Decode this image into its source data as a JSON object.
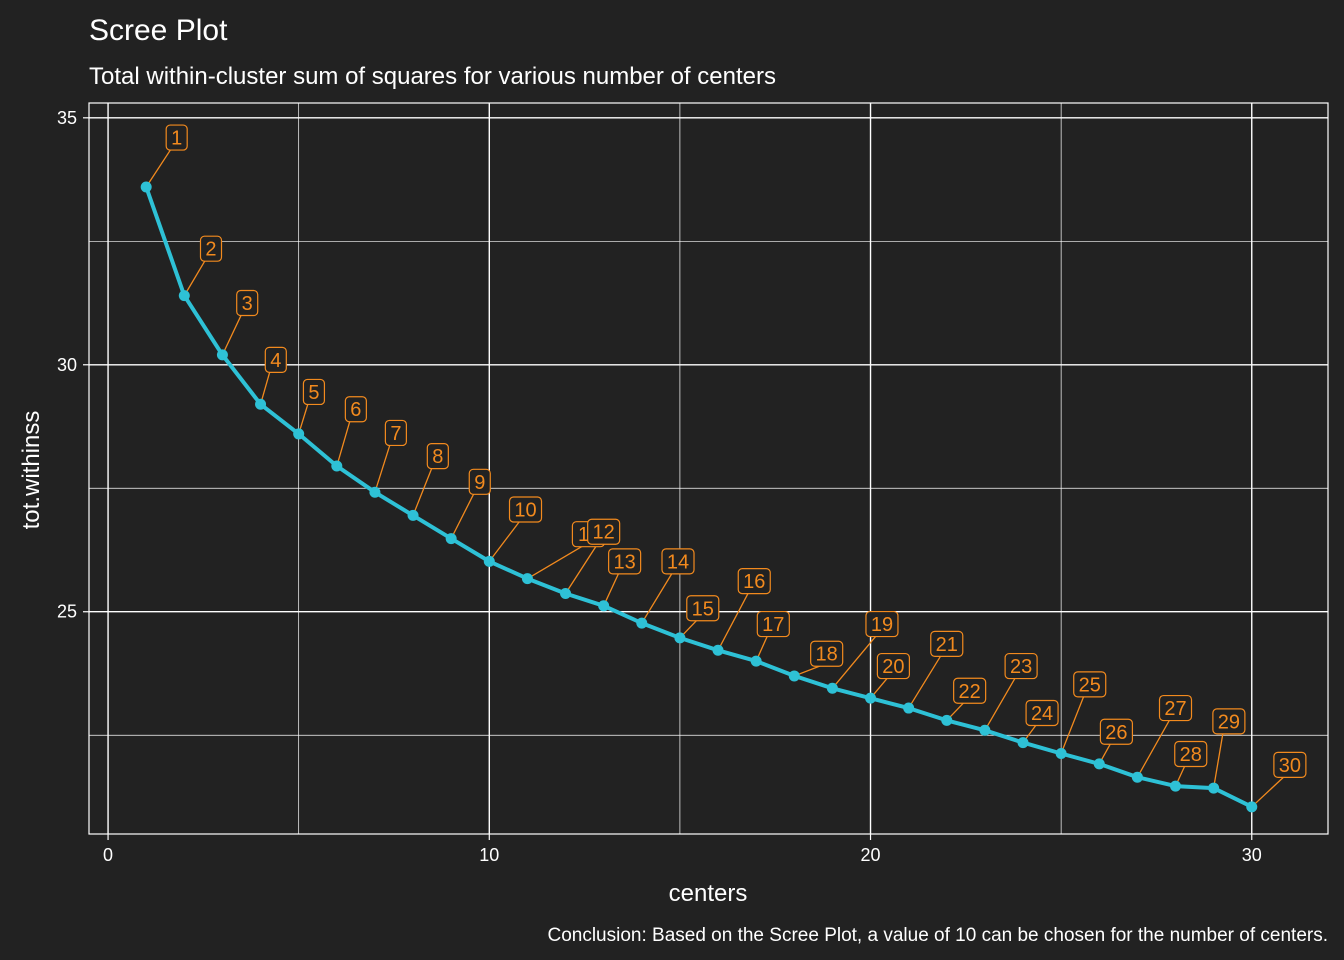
{
  "chart_data": {
    "type": "line",
    "title": "Scree Plot",
    "subtitle": "Total within-cluster sum of squares for various number of centers",
    "xlabel": "centers",
    "ylabel": "tot.withinss",
    "caption": "Conclusion: Based on the Scree Plot, a value of 10 can be chosen for the number of centers.",
    "xlim": [
      -0.5,
      32
    ],
    "ylim": [
      20.5,
      35.3
    ],
    "x_ticks": [
      0,
      10,
      20,
      30
    ],
    "y_ticks": [
      25,
      30,
      35
    ],
    "grid": true,
    "line_color": "#2EC1D6",
    "label_color": "#F28A1E",
    "background_color": "#222222",
    "grid_color": "#ffffff",
    "x": [
      1,
      2,
      3,
      4,
      5,
      6,
      7,
      8,
      9,
      10,
      11,
      12,
      13,
      14,
      15,
      16,
      17,
      18,
      19,
      20,
      21,
      22,
      23,
      24,
      25,
      26,
      27,
      28,
      29,
      30
    ],
    "values": [
      33.6,
      31.4,
      30.2,
      29.2,
      28.6,
      27.95,
      27.42,
      26.95,
      26.48,
      26.02,
      25.67,
      25.37,
      25.12,
      24.77,
      24.47,
      24.22,
      24.0,
      23.7,
      23.45,
      23.25,
      23.05,
      22.8,
      22.6,
      22.35,
      22.13,
      21.92,
      21.65,
      21.47,
      21.43,
      21.05
    ],
    "point_labels": [
      "1",
      "2",
      "3",
      "4",
      "5",
      "6",
      "7",
      "8",
      "9",
      "10",
      "11",
      "12",
      "13",
      "14",
      "15",
      "16",
      "17",
      "18",
      "19",
      "20",
      "21",
      "22",
      "23",
      "24",
      "25",
      "26",
      "27",
      "28",
      "29",
      "30"
    ]
  }
}
